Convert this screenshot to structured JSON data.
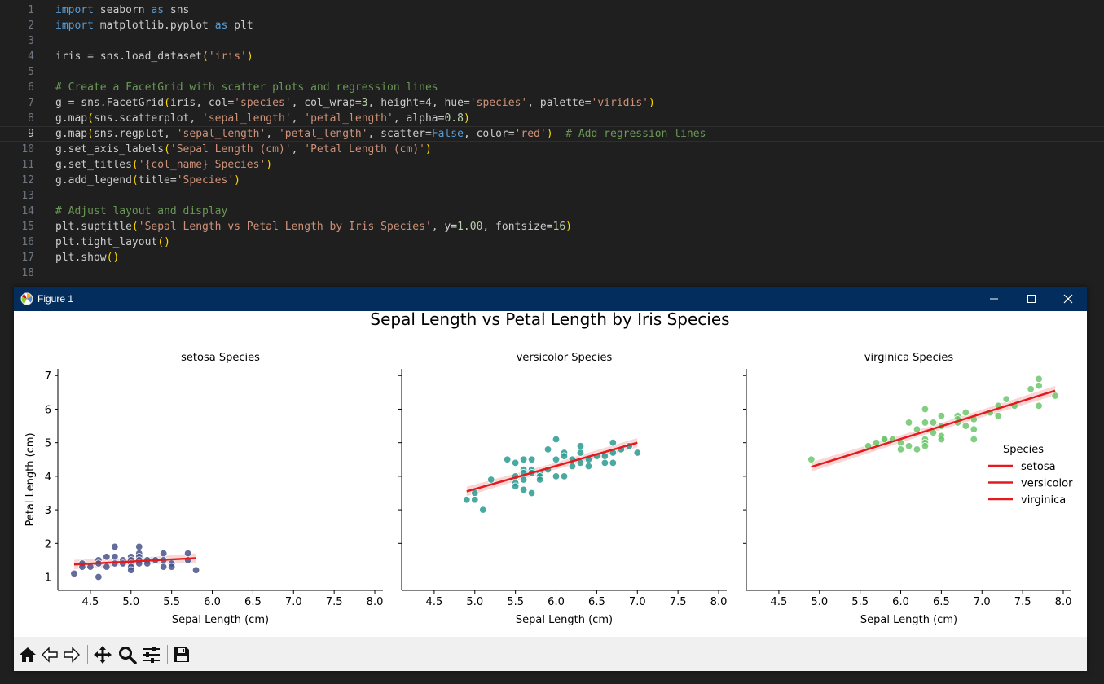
{
  "editor": {
    "lines": [
      {
        "n": "1",
        "t": [
          [
            "kw",
            "import"
          ],
          [
            "",
            " seaborn "
          ],
          [
            "kw",
            "as"
          ],
          [
            "",
            " sns"
          ]
        ]
      },
      {
        "n": "2",
        "t": [
          [
            "kw",
            "import"
          ],
          [
            "",
            " matplotlib.pyplot "
          ],
          [
            "kw",
            "as"
          ],
          [
            "",
            " plt"
          ]
        ]
      },
      {
        "n": "3",
        "t": []
      },
      {
        "n": "4",
        "t": [
          [
            "",
            "iris = sns.load_dataset"
          ],
          [
            "par",
            "("
          ],
          [
            "str",
            "'iris'"
          ],
          [
            "par",
            ")"
          ]
        ]
      },
      {
        "n": "5",
        "t": []
      },
      {
        "n": "6",
        "t": [
          [
            "cmt",
            "# Create a FacetGrid with scatter plots and regression lines"
          ]
        ]
      },
      {
        "n": "7",
        "t": [
          [
            "",
            "g = sns.FacetGrid"
          ],
          [
            "par",
            "("
          ],
          [
            "",
            "iris, col="
          ],
          [
            "str",
            "'species'"
          ],
          [
            "",
            ", col_wrap="
          ],
          [
            "num",
            "3"
          ],
          [
            "",
            ", height="
          ],
          [
            "num",
            "4"
          ],
          [
            "",
            ", hue="
          ],
          [
            "str",
            "'species'"
          ],
          [
            "",
            ", palette="
          ],
          [
            "str",
            "'viridis'"
          ],
          [
            "par",
            ")"
          ]
        ]
      },
      {
        "n": "8",
        "t": [
          [
            "",
            "g.map"
          ],
          [
            "par",
            "("
          ],
          [
            "",
            "sns.scatterplot, "
          ],
          [
            "str",
            "'sepal_length'"
          ],
          [
            "",
            ", "
          ],
          [
            "str",
            "'petal_length'"
          ],
          [
            "",
            ", alpha="
          ],
          [
            "num",
            "0.8"
          ],
          [
            "par",
            ")"
          ]
        ]
      },
      {
        "n": "9",
        "t": [
          [
            "",
            "g.map"
          ],
          [
            "par",
            "("
          ],
          [
            "",
            "sns.regplot, "
          ],
          [
            "str",
            "'sepal_length'"
          ],
          [
            "",
            ", "
          ],
          [
            "str",
            "'petal_length'"
          ],
          [
            "",
            ", scatter="
          ],
          [
            "kw",
            "False"
          ],
          [
            "",
            ", color="
          ],
          [
            "str",
            "'red'"
          ],
          [
            "par",
            ")"
          ],
          [
            "",
            "  "
          ],
          [
            "cmt",
            "# Add regression lines"
          ]
        ]
      },
      {
        "n": "10",
        "t": [
          [
            "",
            "g.set_axis_labels"
          ],
          [
            "par",
            "("
          ],
          [
            "str",
            "'Sepal Length (cm)'"
          ],
          [
            "",
            ", "
          ],
          [
            "str",
            "'Petal Length (cm)'"
          ],
          [
            "par",
            ")"
          ]
        ]
      },
      {
        "n": "11",
        "t": [
          [
            "",
            "g.set_titles"
          ],
          [
            "par",
            "("
          ],
          [
            "str",
            "'{col_name} Species'"
          ],
          [
            "par",
            ")"
          ]
        ]
      },
      {
        "n": "12",
        "t": [
          [
            "",
            "g.add_legend"
          ],
          [
            "par",
            "("
          ],
          [
            "",
            "title="
          ],
          [
            "str",
            "'Species'"
          ],
          [
            "par",
            ")"
          ]
        ]
      },
      {
        "n": "13",
        "t": []
      },
      {
        "n": "14",
        "t": [
          [
            "cmt",
            "# Adjust layout and display"
          ]
        ]
      },
      {
        "n": "15",
        "t": [
          [
            "",
            "plt.suptitle"
          ],
          [
            "par",
            "("
          ],
          [
            "str",
            "'Sepal Length vs Petal Length by Iris Species'"
          ],
          [
            "",
            ", y="
          ],
          [
            "num",
            "1.00"
          ],
          [
            "",
            ", fontsize="
          ],
          [
            "num",
            "16"
          ],
          [
            "par",
            ")"
          ]
        ]
      },
      {
        "n": "16",
        "t": [
          [
            "",
            "plt.tight_layout"
          ],
          [
            "par",
            "("
          ],
          [
            "par",
            ")"
          ]
        ]
      },
      {
        "n": "17",
        "t": [
          [
            "",
            "plt.show"
          ],
          [
            "par",
            "("
          ],
          [
            "par",
            ")"
          ]
        ]
      },
      {
        "n": "18",
        "t": []
      }
    ]
  },
  "window": {
    "title": "Figure 1"
  },
  "toolbar": {
    "tools": [
      "home-icon",
      "back-icon",
      "forward-icon",
      "pan-icon",
      "zoom-icon",
      "configure-icon",
      "save-icon"
    ]
  },
  "chart_data": {
    "type": "scatter",
    "title": "Sepal Length vs Petal Length by Iris Species",
    "xlabel": "Sepal Length (cm)",
    "ylabel": "Petal Length (cm)",
    "xlim": [
      4.1,
      8.1
    ],
    "ylim": [
      0.6,
      7.2
    ],
    "xticks": [
      "4.5",
      "5.0",
      "5.5",
      "6.0",
      "6.5",
      "7.0",
      "7.5",
      "8.0"
    ],
    "yticks": [
      "1",
      "2",
      "3",
      "4",
      "5",
      "6",
      "7"
    ],
    "legend": {
      "title": "Species",
      "entries": [
        "setosa",
        "versicolor",
        "virginica"
      ],
      "placement": "right",
      "line_color": "#e41a1c"
    },
    "regression_color": "#e41a1c",
    "facets": [
      {
        "title": "setosa Species",
        "name": "setosa",
        "color": "#46548b",
        "reg": [
          [
            4.3,
            1.37
          ],
          [
            5.8,
            1.56
          ]
        ],
        "points": [
          [
            4.3,
            1.1
          ],
          [
            4.4,
            1.4
          ],
          [
            4.4,
            1.3
          ],
          [
            4.5,
            1.3
          ],
          [
            4.6,
            1.5
          ],
          [
            4.6,
            1.4
          ],
          [
            4.6,
            1.0
          ],
          [
            4.7,
            1.6
          ],
          [
            4.7,
            1.3
          ],
          [
            4.8,
            1.9
          ],
          [
            4.8,
            1.6
          ],
          [
            4.8,
            1.4
          ],
          [
            4.9,
            1.5
          ],
          [
            4.9,
            1.4
          ],
          [
            5.0,
            1.6
          ],
          [
            5.0,
            1.5
          ],
          [
            5.0,
            1.4
          ],
          [
            5.0,
            1.3
          ],
          [
            5.0,
            1.2
          ],
          [
            5.1,
            1.9
          ],
          [
            5.1,
            1.7
          ],
          [
            5.1,
            1.6
          ],
          [
            5.1,
            1.5
          ],
          [
            5.1,
            1.4
          ],
          [
            5.2,
            1.5
          ],
          [
            5.2,
            1.4
          ],
          [
            5.3,
            1.5
          ],
          [
            5.4,
            1.7
          ],
          [
            5.4,
            1.5
          ],
          [
            5.4,
            1.3
          ],
          [
            5.5,
            1.4
          ],
          [
            5.5,
            1.3
          ],
          [
            5.7,
            1.7
          ],
          [
            5.7,
            1.5
          ],
          [
            5.8,
            1.2
          ]
        ]
      },
      {
        "title": "versicolor Species",
        "name": "versicolor",
        "color": "#2a9a8f",
        "reg": [
          [
            4.9,
            3.55
          ],
          [
            7.0,
            5.0
          ]
        ],
        "points": [
          [
            4.9,
            3.3
          ],
          [
            5.0,
            3.5
          ],
          [
            5.0,
            3.3
          ],
          [
            5.1,
            3.0
          ],
          [
            5.2,
            3.9
          ],
          [
            5.4,
            4.5
          ],
          [
            5.5,
            4.4
          ],
          [
            5.5,
            4.0
          ],
          [
            5.5,
            3.8
          ],
          [
            5.5,
            3.7
          ],
          [
            5.6,
            4.5
          ],
          [
            5.6,
            4.2
          ],
          [
            5.6,
            4.1
          ],
          [
            5.6,
            3.9
          ],
          [
            5.6,
            3.6
          ],
          [
            5.7,
            4.5
          ],
          [
            5.7,
            4.2
          ],
          [
            5.7,
            4.1
          ],
          [
            5.7,
            3.5
          ],
          [
            5.8,
            4.1
          ],
          [
            5.8,
            4.0
          ],
          [
            5.8,
            3.9
          ],
          [
            5.9,
            4.8
          ],
          [
            5.9,
            4.2
          ],
          [
            6.0,
            5.1
          ],
          [
            6.0,
            4.5
          ],
          [
            6.0,
            4.0
          ],
          [
            6.1,
            4.7
          ],
          [
            6.1,
            4.6
          ],
          [
            6.1,
            4.0
          ],
          [
            6.2,
            4.5
          ],
          [
            6.2,
            4.3
          ],
          [
            6.3,
            4.9
          ],
          [
            6.3,
            4.7
          ],
          [
            6.3,
            4.4
          ],
          [
            6.4,
            4.5
          ],
          [
            6.4,
            4.3
          ],
          [
            6.5,
            4.6
          ],
          [
            6.6,
            4.6
          ],
          [
            6.6,
            4.4
          ],
          [
            6.7,
            5.0
          ],
          [
            6.7,
            4.7
          ],
          [
            6.7,
            4.4
          ],
          [
            6.8,
            4.8
          ],
          [
            6.9,
            4.9
          ],
          [
            7.0,
            4.7
          ]
        ]
      },
      {
        "title": "virginica Species",
        "name": "virginica",
        "color": "#6cc56c",
        "reg": [
          [
            4.9,
            4.28
          ],
          [
            7.9,
            6.55
          ]
        ],
        "points": [
          [
            4.9,
            4.5
          ],
          [
            5.6,
            4.9
          ],
          [
            5.7,
            5.0
          ],
          [
            5.8,
            5.1
          ],
          [
            5.8,
            5.1
          ],
          [
            5.9,
            5.1
          ],
          [
            6.0,
            5.0
          ],
          [
            6.0,
            4.8
          ],
          [
            6.1,
            5.6
          ],
          [
            6.1,
            4.9
          ],
          [
            6.2,
            5.4
          ],
          [
            6.2,
            4.8
          ],
          [
            6.3,
            6.0
          ],
          [
            6.3,
            5.6
          ],
          [
            6.3,
            5.1
          ],
          [
            6.3,
            5.0
          ],
          [
            6.3,
            4.9
          ],
          [
            6.4,
            5.6
          ],
          [
            6.4,
            5.3
          ],
          [
            6.5,
            5.8
          ],
          [
            6.5,
            5.5
          ],
          [
            6.5,
            5.2
          ],
          [
            6.5,
            5.1
          ],
          [
            6.7,
            5.8
          ],
          [
            6.7,
            5.7
          ],
          [
            6.7,
            5.6
          ],
          [
            6.8,
            5.9
          ],
          [
            6.8,
            5.5
          ],
          [
            6.9,
            5.7
          ],
          [
            6.9,
            5.4
          ],
          [
            6.9,
            5.1
          ],
          [
            7.1,
            5.9
          ],
          [
            7.2,
            6.1
          ],
          [
            7.2,
            5.8
          ],
          [
            7.3,
            6.3
          ],
          [
            7.4,
            6.1
          ],
          [
            7.6,
            6.6
          ],
          [
            7.7,
            6.9
          ],
          [
            7.7,
            6.7
          ],
          [
            7.7,
            6.1
          ],
          [
            7.9,
            6.4
          ]
        ]
      }
    ]
  }
}
